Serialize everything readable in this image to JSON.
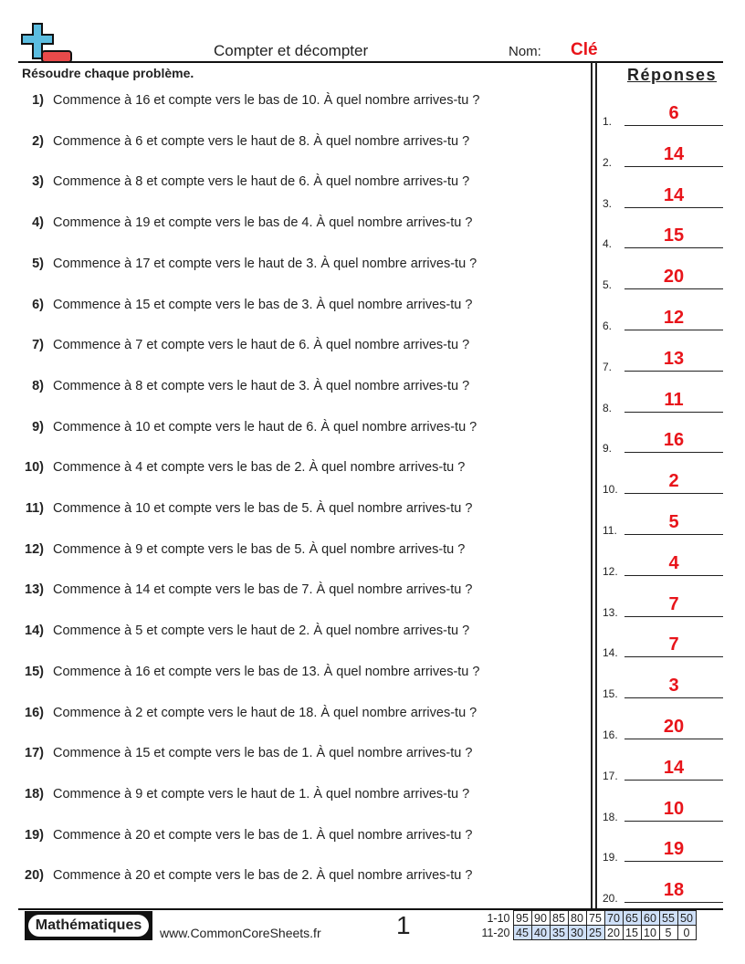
{
  "header": {
    "title": "Compter et décompter",
    "name_label": "Nom:",
    "name_value": "Clé",
    "instructions": "Résoudre chaque problème.",
    "answers_title": "Réponses"
  },
  "problems": [
    {
      "num": "1)",
      "text": "Commence à 16 et compte vers le bas de 10. À quel nombre arrives-tu ?"
    },
    {
      "num": "2)",
      "text": "Commence à 6 et compte vers le haut de 8. À quel nombre arrives-tu ?"
    },
    {
      "num": "3)",
      "text": "Commence à 8 et compte vers le haut de 6. À quel nombre arrives-tu ?"
    },
    {
      "num": "4)",
      "text": "Commence à 19 et compte vers le bas de 4. À quel nombre arrives-tu ?"
    },
    {
      "num": "5)",
      "text": "Commence à 17 et compte vers le haut de 3. À quel nombre arrives-tu ?"
    },
    {
      "num": "6)",
      "text": "Commence à 15 et compte vers le bas de 3. À quel nombre arrives-tu ?"
    },
    {
      "num": "7)",
      "text": "Commence à 7 et compte vers le haut de 6. À quel nombre arrives-tu ?"
    },
    {
      "num": "8)",
      "text": "Commence à 8 et compte vers le haut de 3. À quel nombre arrives-tu ?"
    },
    {
      "num": "9)",
      "text": "Commence à 10 et compte vers le haut de 6. À quel nombre arrives-tu ?"
    },
    {
      "num": "10)",
      "text": "Commence à 4 et compte vers le bas de 2. À quel nombre arrives-tu ?"
    },
    {
      "num": "11)",
      "text": "Commence à 10 et compte vers le bas de 5. À quel nombre arrives-tu ?"
    },
    {
      "num": "12)",
      "text": "Commence à 9 et compte vers le bas de 5. À quel nombre arrives-tu ?"
    },
    {
      "num": "13)",
      "text": "Commence à 14 et compte vers le bas de 7. À quel nombre arrives-tu ?"
    },
    {
      "num": "14)",
      "text": "Commence à 5 et compte vers le haut de 2. À quel nombre arrives-tu ?"
    },
    {
      "num": "15)",
      "text": "Commence à 16 et compte vers le bas de 13. À quel nombre arrives-tu ?"
    },
    {
      "num": "16)",
      "text": "Commence à 2 et compte vers le haut de 18. À quel nombre arrives-tu ?"
    },
    {
      "num": "17)",
      "text": "Commence à 15 et compte vers le bas de 1. À quel nombre arrives-tu ?"
    },
    {
      "num": "18)",
      "text": "Commence à 9 et compte vers le haut de 1. À quel nombre arrives-tu ?"
    },
    {
      "num": "19)",
      "text": "Commence à 20 et compte vers le bas de 1. À quel nombre arrives-tu ?"
    },
    {
      "num": "20)",
      "text": "Commence à 20 et compte vers le bas de 2. À quel nombre arrives-tu ?"
    }
  ],
  "answers": [
    {
      "num": "1.",
      "value": "6"
    },
    {
      "num": "2.",
      "value": "14"
    },
    {
      "num": "3.",
      "value": "14"
    },
    {
      "num": "4.",
      "value": "15"
    },
    {
      "num": "5.",
      "value": "20"
    },
    {
      "num": "6.",
      "value": "12"
    },
    {
      "num": "7.",
      "value": "13"
    },
    {
      "num": "8.",
      "value": "11"
    },
    {
      "num": "9.",
      "value": "16"
    },
    {
      "num": "10.",
      "value": "2"
    },
    {
      "num": "11.",
      "value": "5"
    },
    {
      "num": "12.",
      "value": "4"
    },
    {
      "num": "13.",
      "value": "7"
    },
    {
      "num": "14.",
      "value": "7"
    },
    {
      "num": "15.",
      "value": "3"
    },
    {
      "num": "16.",
      "value": "20"
    },
    {
      "num": "17.",
      "value": "14"
    },
    {
      "num": "18.",
      "value": "10"
    },
    {
      "num": "19.",
      "value": "19"
    },
    {
      "num": "20.",
      "value": "18"
    }
  ],
  "footer": {
    "badge": "Mathématiques",
    "url": "www.CommonCoreSheets.fr",
    "page": "1",
    "score_rows": [
      {
        "label": "1-10",
        "cells": [
          "95",
          "90",
          "85",
          "80",
          "75",
          "70",
          "65",
          "60",
          "55",
          "50"
        ]
      },
      {
        "label": "11-20",
        "cells": [
          "45",
          "40",
          "35",
          "30",
          "25",
          "20",
          "15",
          "10",
          "5",
          "0"
        ]
      }
    ]
  },
  "colors": {
    "answer": "#e8141a",
    "logo_plus": "#5bbde0",
    "logo_minus": "#e84a4a",
    "score_highlight": "#cfe0f8"
  }
}
